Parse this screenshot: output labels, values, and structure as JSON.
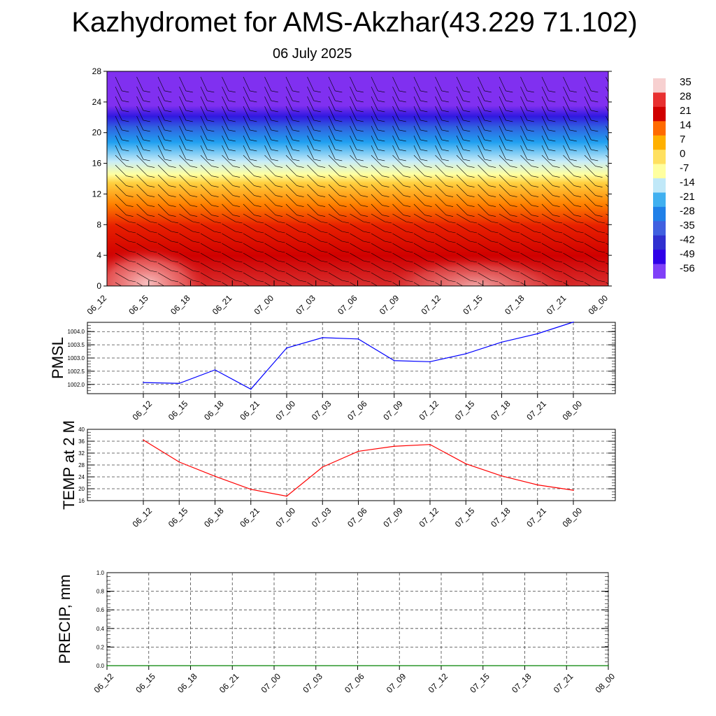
{
  "title": "Kazhydromet for AMS-Akzhar(43.229 71.102)",
  "subtitle": "06 July 2025",
  "time_labels": [
    "06_12",
    "06_15",
    "06_18",
    "06_21",
    "07_00",
    "07_03",
    "07_06",
    "07_09",
    "07_12",
    "07_15",
    "07_18",
    "07_21",
    "08_00"
  ],
  "colorbar": {
    "labels": [
      "35",
      "28",
      "21",
      "14",
      "7",
      "0",
      "-7",
      "-14",
      "-21",
      "-28",
      "-35",
      "-42",
      "-49",
      "-56"
    ],
    "colors": [
      "#f7d0d0",
      "#e83030",
      "#d00000",
      "#ff6a00",
      "#ffb000",
      "#ffe060",
      "#ffffa0",
      "#c0e8f8",
      "#40b0f0",
      "#2080e8",
      "#4060e0",
      "#3030d0",
      "#3000e8",
      "#8040f8"
    ]
  },
  "chart_data": [
    {
      "type": "heatmap",
      "title": "",
      "xlabel": "",
      "ylabel": "",
      "x": [
        "06_12",
        "06_15",
        "06_18",
        "06_21",
        "07_00",
        "07_03",
        "07_06",
        "07_09",
        "07_12",
        "07_15",
        "07_18",
        "07_21",
        "08_00"
      ],
      "yticks": [
        0,
        4,
        8,
        12,
        16,
        20,
        24,
        28
      ],
      "ylim": [
        0,
        28
      ],
      "colorscale_range": [
        -56,
        35
      ],
      "overlay": "wind barbs"
    },
    {
      "type": "line",
      "ylabel": "PMSL",
      "x": [
        "06_12",
        "06_15",
        "06_18",
        "06_21",
        "07_00",
        "07_03",
        "07_06",
        "07_09",
        "07_12",
        "07_15",
        "07_18",
        "07_21",
        "08_00"
      ],
      "values": [
        1002.07,
        1002.04,
        1002.55,
        1001.82,
        1003.38,
        1003.77,
        1003.72,
        1002.9,
        1002.86,
        1003.16,
        1003.6,
        1003.92,
        1004.36
      ],
      "yticks": [
        "1002.0",
        "1002.5",
        "1003.0",
        "1003.5",
        "1004.0"
      ],
      "ylim": [
        1001.65,
        1004.35
      ],
      "color": "#0000ff",
      "grid": true
    },
    {
      "type": "line",
      "ylabel": "TEMP at 2 M",
      "x": [
        "06_12",
        "06_15",
        "06_18",
        "06_21",
        "07_00",
        "07_03",
        "07_06",
        "07_09",
        "07_12",
        "07_15",
        "07_18",
        "07_21",
        "08_00"
      ],
      "values": [
        36.4,
        29.0,
        24.2,
        19.8,
        17.5,
        27.3,
        32.6,
        34.3,
        34.9,
        28.4,
        24.3,
        21.3,
        19.5
      ],
      "yticks": [
        "16",
        "20",
        "24",
        "28",
        "32",
        "36",
        "40"
      ],
      "ylim": [
        16,
        40
      ],
      "color": "#ff0000",
      "grid": true
    },
    {
      "type": "line",
      "ylabel": "PRECIP, mm",
      "x": [
        "06_12",
        "06_15",
        "06_18",
        "06_21",
        "07_00",
        "07_03",
        "07_06",
        "07_09",
        "07_12",
        "07_15",
        "07_18",
        "07_21",
        "08_00"
      ],
      "values": [
        0,
        0,
        0,
        0,
        0,
        0,
        0,
        0,
        0,
        0,
        0,
        0,
        0
      ],
      "yticks": [
        "0.0",
        "0.2",
        "0.4",
        "0.6",
        "0.8",
        "1.0"
      ],
      "ylim": [
        0,
        1
      ],
      "color": "#008000",
      "grid": true
    }
  ]
}
